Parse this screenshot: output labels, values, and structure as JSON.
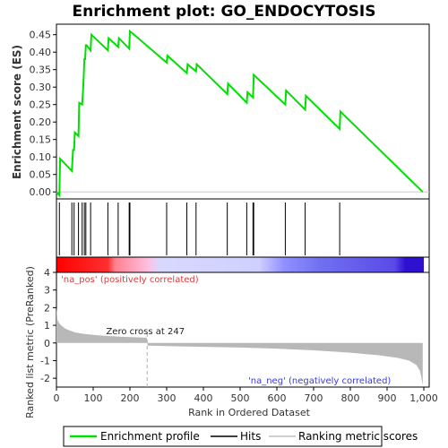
{
  "chart_data": {
    "type": "line",
    "title": "Enrichment plot: GO_ENDOCYTOSIS",
    "es_panel": {
      "ylabel": "Enrichment score (ES)",
      "ylim": [
        -0.02,
        0.48
      ],
      "yticks": [
        0.0,
        0.05,
        0.1,
        0.15,
        0.2,
        0.25,
        0.3,
        0.35,
        0.4,
        0.45
      ],
      "ytick_labels": [
        "0.00",
        "0.05",
        "0.10",
        "0.15",
        "0.20",
        "0.25",
        "0.30",
        "0.35",
        "0.40",
        "0.45"
      ],
      "series": [
        {
          "name": "Enrichment profile",
          "color": "#00e000",
          "x": [
            0,
            8,
            10,
            42,
            45,
            48,
            50,
            60,
            62,
            70,
            73,
            76,
            78,
            80,
            82,
            93,
            95,
            140,
            142,
            168,
            170,
            198,
            200,
            300,
            302,
            355,
            357,
            380,
            382,
            465,
            467,
            518,
            520,
            535,
            537,
            623,
            625,
            677,
            679,
            771,
            773,
            997
          ],
          "y": [
            0.0,
            -0.01,
            0.095,
            0.06,
            0.12,
            0.12,
            0.17,
            0.16,
            0.255,
            0.25,
            0.3,
            0.38,
            0.38,
            0.42,
            0.42,
            0.405,
            0.45,
            0.405,
            0.44,
            0.415,
            0.44,
            0.41,
            0.46,
            0.37,
            0.39,
            0.34,
            0.365,
            0.345,
            0.365,
            0.28,
            0.31,
            0.255,
            0.285,
            0.27,
            0.335,
            0.25,
            0.29,
            0.235,
            0.275,
            0.18,
            0.23,
            0.0
          ]
        }
      ]
    },
    "hits_panel": {
      "hit_ranks": [
        8,
        42,
        48,
        60,
        70,
        76,
        80,
        93,
        140,
        168,
        198,
        200,
        300,
        355,
        380,
        465,
        518,
        535,
        537,
        623,
        677,
        771
      ]
    },
    "heat_bar": {
      "colors_left_to_right": [
        "#ff0000",
        "#ff9090",
        "#d0d0ff",
        "#8080ff",
        "#3030e0"
      ]
    },
    "rank_panel": {
      "ylabel": "Ranked list metric (PreRanked)",
      "xlabel": "Rank in Ordered Dataset",
      "ylim": [
        -2.5,
        4
      ],
      "yticks": [
        -2,
        -1,
        0,
        1,
        2,
        3,
        4
      ],
      "ytick_labels": [
        "-2",
        "-1",
        "0",
        "1",
        "2",
        "3",
        "4"
      ],
      "xlim": [
        0,
        1000
      ],
      "xticks": [
        0,
        100,
        200,
        300,
        400,
        500,
        600,
        700,
        800,
        900,
        1000
      ],
      "xtick_labels": [
        "0",
        "100",
        "200",
        "300",
        "400",
        "500",
        "600",
        "700",
        "800",
        "900",
        "1,000"
      ],
      "zero_cross_rank": 247,
      "zero_cross_label": "Zero cross at 247",
      "pos_label": "'na_pos' (positively correlated)",
      "neg_label": "'na_neg' (negatively correlated)",
      "metric_profile": {
        "x": [
          0,
          3,
          10,
          25,
          50,
          80,
          120,
          180,
          246,
          248,
          300,
          400,
          500,
          600,
          700,
          800,
          880,
          930,
          960,
          980,
          990,
          997
        ],
        "y": [
          2.0,
          1.3,
          1.05,
          0.8,
          0.6,
          0.5,
          0.42,
          0.35,
          0.3,
          -0.15,
          -0.18,
          -0.22,
          -0.26,
          -0.32,
          -0.42,
          -0.55,
          -0.7,
          -0.85,
          -1.0,
          -1.25,
          -1.6,
          -2.4
        ]
      }
    },
    "legend": [
      {
        "label": "Enrichment profile",
        "color": "#00e000"
      },
      {
        "label": "Hits",
        "color": "#000000"
      },
      {
        "label": "Ranking metric scores",
        "color": "#c0c0c0"
      }
    ]
  }
}
